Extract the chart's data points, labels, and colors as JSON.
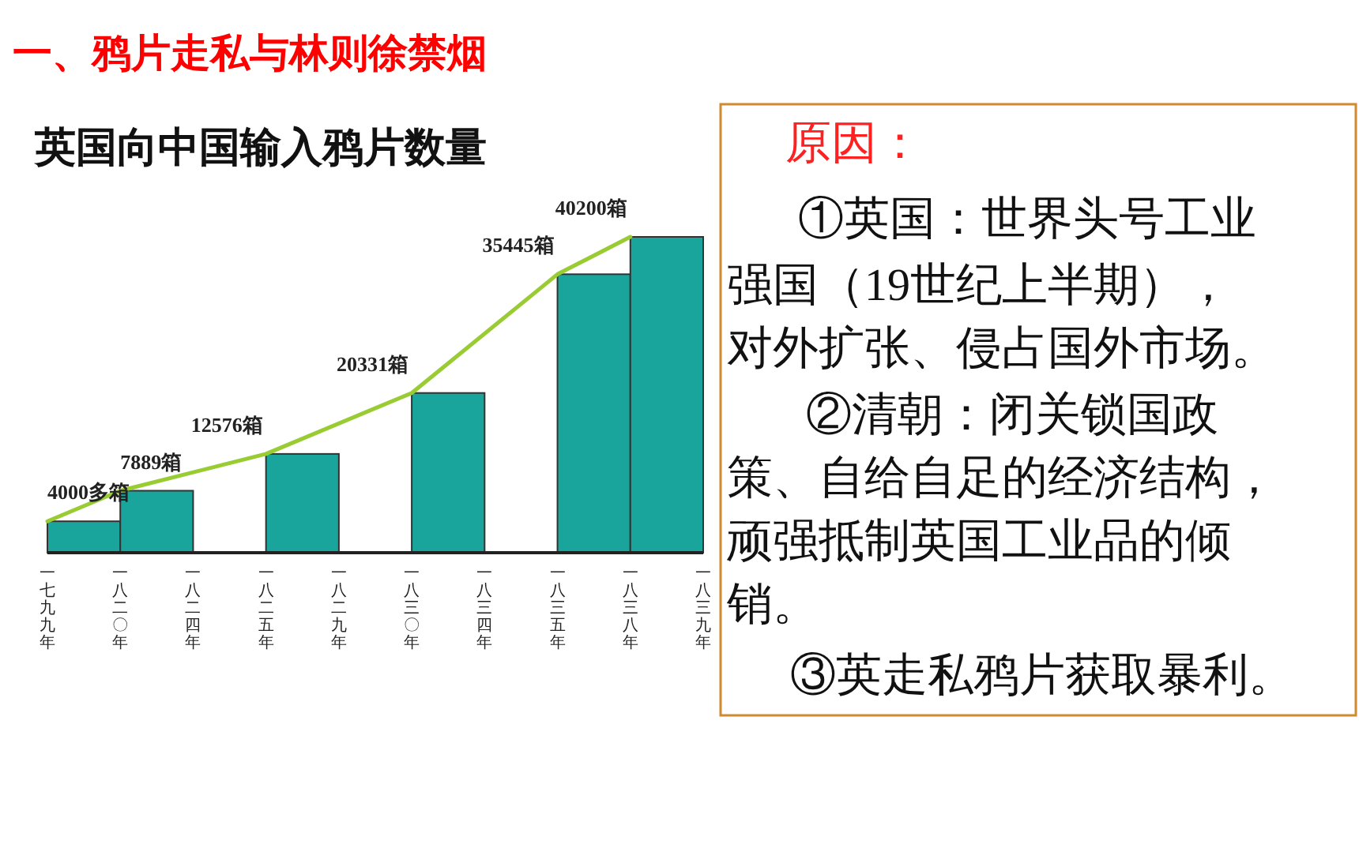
{
  "chart_data": [
    {
      "type": "bar",
      "title": "一、鸦片走私与林则徐禁烟",
      "subtitle": "英国向中国输入鸦片数量",
      "categories": [
        "一七九九年",
        "一八二〇年",
        "一八二四年",
        "一八二五年",
        "一八二九年",
        "一八三〇年",
        "一八三四年",
        "一八三五年",
        "一八三八年",
        "一八三九年"
      ],
      "series": [
        {
          "type": "bar",
          "color": "#19a59b",
          "values": [
            4000,
            7889,
            null,
            12576,
            null,
            20331,
            null,
            35445,
            40200,
            null
          ]
        },
        {
          "type": "line",
          "color": "#99cc33",
          "values": [
            4000,
            7889,
            null,
            12576,
            null,
            20331,
            null,
            35445,
            40200,
            null
          ],
          "value_labels": [
            "4000多箱",
            "7889箱",
            null,
            "12576箱",
            null,
            "20331箱",
            null,
            "35445箱",
            "40200箱",
            null
          ]
        }
      ]
    },
    {
      "type": "other",
      "annotations": [
        "原因：",
        "①英国：世界头号工业",
        "强国（19世纪上半期），",
        "对外扩张、侵占国外市场。",
        "②清朝：闭关锁国政",
        "策、自给自足的经济结构，",
        "顽强抵制英国工业品的倾",
        "销。",
        "③英走私鸦片获取暴利。"
      ]
    }
  ]
}
